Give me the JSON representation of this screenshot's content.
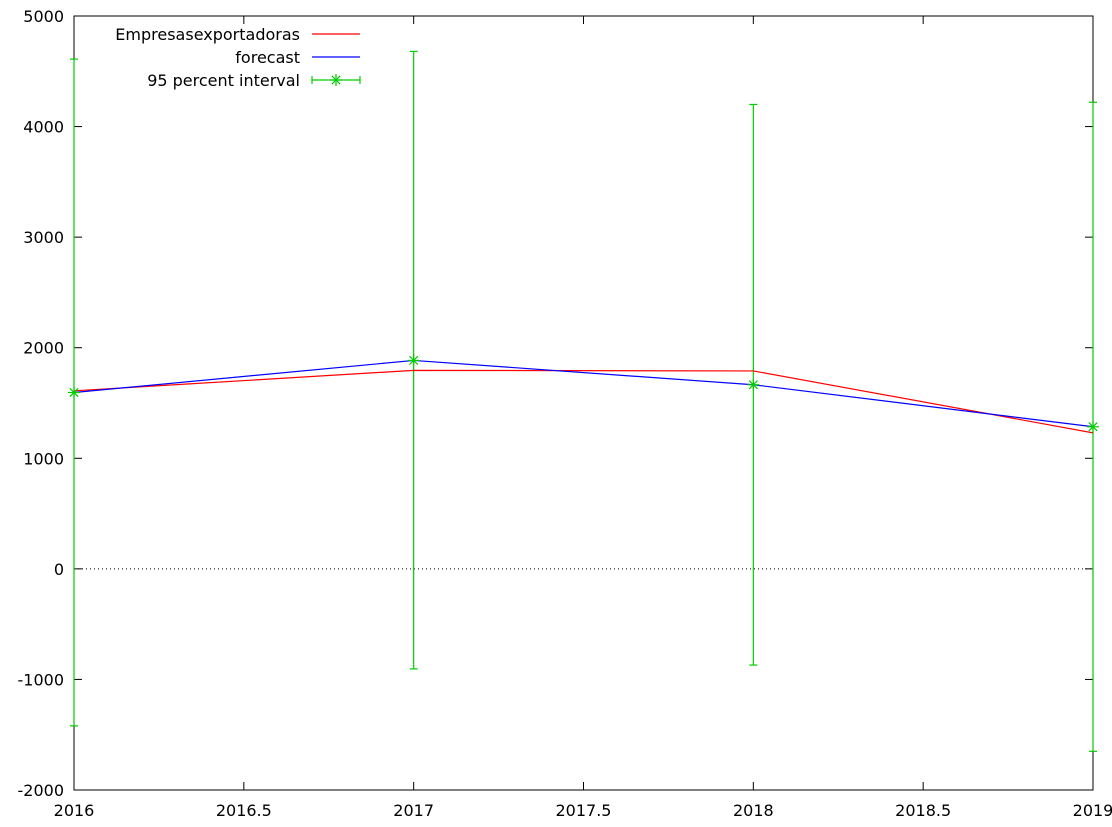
{
  "chart_data": {
    "type": "line",
    "title": "",
    "xlabel": "",
    "ylabel": "",
    "xlim": [
      2016,
      2019
    ],
    "ylim": [
      -2000,
      5000
    ],
    "x_ticks": [
      2016,
      2016.5,
      2017,
      2017.5,
      2018,
      2018.5,
      2019
    ],
    "x_tick_labels": [
      "2016",
      "2016.5",
      "2017",
      "2017.5",
      "2018",
      "2018.5",
      "2019"
    ],
    "y_ticks": [
      -2000,
      -1000,
      0,
      1000,
      2000,
      3000,
      4000,
      5000
    ],
    "y_tick_labels": [
      "-2000",
      "-1000",
      "0",
      "1000",
      "2000",
      "3000",
      "4000",
      "5000"
    ],
    "grid": false,
    "zero_line": true,
    "legend_position": "top-left",
    "x": [
      2016,
      2017,
      2018,
      2019
    ],
    "series": [
      {
        "name": "Empresasexportadoras",
        "color": "#ff0000",
        "values": [
          1610,
          1795,
          1790,
          1230
        ]
      },
      {
        "name": "forecast",
        "color": "#0000ff",
        "values": [
          1595,
          1885,
          1665,
          1285
        ]
      }
    ],
    "interval": {
      "name": "95 percent interval",
      "color": "#00cc00",
      "center": [
        1595,
        1885,
        1665,
        1285
      ],
      "low": [
        -1420,
        -905,
        -870,
        -1650
      ],
      "high": [
        4610,
        4680,
        4200,
        4220
      ]
    }
  }
}
